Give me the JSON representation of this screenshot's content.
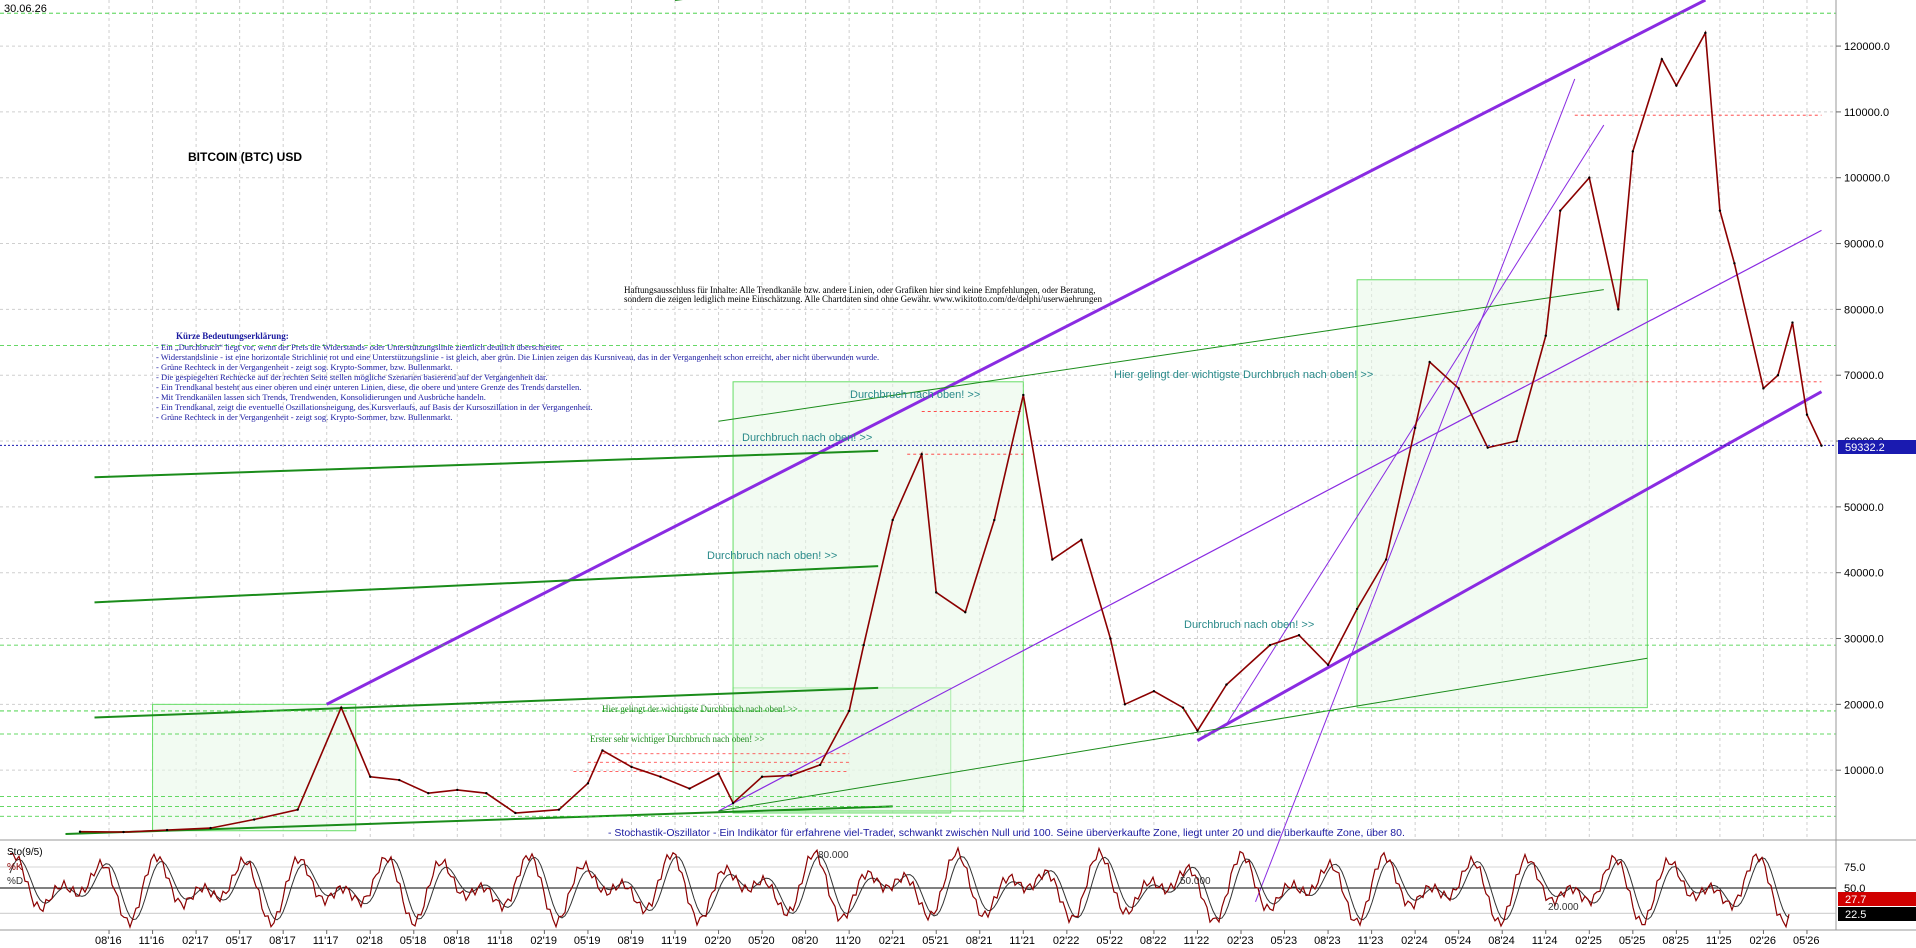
{
  "header": {
    "date": "30.06.26"
  },
  "chart_data": {
    "type": "line",
    "title": "BITCOIN (BTC) USD",
    "x_range": [
      "2016-06",
      "2026-07"
    ],
    "ylim": [
      0,
      127000
    ],
    "grid": true,
    "y_ticks": [
      10000,
      20000,
      30000,
      40000,
      50000,
      60000,
      70000,
      80000,
      90000,
      100000,
      110000,
      120000
    ],
    "y_tick_labels": [
      "10000.0",
      "20000.0",
      "30000.0",
      "40000.0",
      "50000.0",
      "60000.0",
      "70000.0",
      "80000.0",
      "90000.0",
      "100000.0",
      "110000.0",
      "120000.0"
    ],
    "x_tick_labels": [
      "08'16",
      "11'16",
      "02'17",
      "05'17",
      "08'17",
      "11'17",
      "02'18",
      "05'18",
      "08'18",
      "11'18",
      "02'19",
      "05'19",
      "08'19",
      "11'19",
      "02'20",
      "05'20",
      "08'20",
      "11'20",
      "02'21",
      "05'21",
      "08'21",
      "11'21",
      "02'22",
      "05'22",
      "08'22",
      "11'22",
      "02'23",
      "05'23",
      "08'23",
      "11'23",
      "02'24",
      "05'24",
      "08'24",
      "11'24",
      "02'25",
      "05'25",
      "08'25",
      "11'25",
      "02'26",
      "05'26"
    ],
    "last_price": "59332.2",
    "series": [
      {
        "name": "",
        "x": [
          "2016-06",
          "2016-09",
          "2016-12",
          "2017-03",
          "2017-06",
          "2017-09",
          "2017-12",
          "2018-02",
          "2018-04",
          "2018-06",
          "2018-08",
          "2018-10",
          "2018-12",
          "2019-03",
          "2019-05",
          "2019-06",
          "2019-08",
          "2019-10",
          "2019-12",
          "2020-02",
          "2020-03",
          "2020-05",
          "2020-07",
          "2020-09",
          "2020-11",
          "2020-12",
          "2021-02",
          "2021-04",
          "2021-05",
          "2021-07",
          "2021-09",
          "2021-11",
          "2022-01",
          "2022-03",
          "2022-05",
          "2022-06",
          "2022-08",
          "2022-10",
          "2022-11",
          "2023-01",
          "2023-04",
          "2023-06",
          "2023-08",
          "2023-10",
          "2023-12",
          "2024-02",
          "2024-03",
          "2024-05",
          "2024-07",
          "2024-09",
          "2024-11",
          "2024-12",
          "2025-02",
          "2025-04",
          "2025-05",
          "2025-07",
          "2025-08",
          "2025-10",
          "2025-11",
          "2025-12",
          "2026-02",
          "2026-03",
          "2026-04",
          "2026-05",
          "2026-06"
        ],
        "values": [
          650,
          600,
          900,
          1200,
          2500,
          4000,
          19500,
          9000,
          8500,
          6500,
          7000,
          6500,
          3500,
          4000,
          8000,
          13000,
          10500,
          9000,
          7200,
          9500,
          5000,
          9000,
          9200,
          10800,
          19000,
          29000,
          48000,
          58000,
          37000,
          34000,
          48000,
          67000,
          42000,
          45000,
          30000,
          20000,
          22000,
          19500,
          16000,
          23000,
          29000,
          30500,
          26000,
          34500,
          42000,
          62000,
          72000,
          68000,
          59000,
          60000,
          76000,
          95000,
          100000,
          80000,
          104000,
          118000,
          114000,
          122000,
          95000,
          87000,
          68000,
          70000,
          78000,
          64000,
          59300
        ]
      }
    ],
    "annotations": {
      "disclaimer_1": "Haftungsausschluss für Inhalte: Alle Trendkanäle bzw. andere Linien, oder Grafiken hier sind keine Empfehlungen, oder Beratung,",
      "disclaimer_2": "sondern die zeigen lediglich meine Einschätzung. Alle Chartdaten sind ohne Gewähr. www.wikitotto.com/de/delphi/userwaehrungen",
      "legend_title": "Kürze Bedeutungserklärung:",
      "legend_lines": [
        "- Ein „Durchbruch“ liegt vor, wenn der Preis die Widerstands- oder Unterstützungslinie ziemlich deutlich überschreitet.",
        "- Widerstandslinie - ist eine horizontale Strichlinie rot und eine Unterstützungslinie - ist gleich, aber grün. Die Linien zeigen das Kursniveau, das in der Vergangenheit schon erreicht, aber nicht überwunden wurde.",
        "- Grüne Rechteck in der Vergangenheit - zeigt sog. Krypto-Sommer, bzw. Bullenmarkt.",
        "- Die gespiegelten Rechtecke auf der rechten Seite stellen mögliche Szenarien basierend auf der Vergangenheit dar.",
        "- Ein Trendkanal besteht aus einer oberen und einer unteren Linien, diese, die obere und untere Grenze des Trends darstellen.",
        "- Mit Trendkanälen lassen sich Trends, Trendwenden, Konsolidierungen und Ausbrüche handeln.",
        "- Ein Trendkanal, zeigt die eventuelle Oszillationsneigung, des Kursverlaufs, auf Basis der Kursoszillation in der Vergangenheit.",
        "- Grüne Rechteck in der Vergangenheit - zeigt sog. Krypto-Sommer, bzw. Bullenmarkt."
      ],
      "breakout_label": "Durchbruch nach oben! >>",
      "main_breakout": "Hier gelingt der wichtigste Durchbruch nach oben! >>",
      "breakout_2020": "Hier gelingt der wichtigste Durchbruch nach oben! >>",
      "first_breakout": "Erster sehr wichtiger Durchbruch nach oben! >>",
      "stoch_note": "- Stochastik-Oszillator - Ein Indikator für erfahrene viel-Trader, schwankt zwischen Null und 100. Seine überverkaufte Zone, liegt unter 20 und die überkaufte Zone, über 80."
    }
  },
  "oscillator": {
    "label": "Sto(9/5)",
    "k_label": "%K",
    "d_label": "%D",
    "y_ticks": [
      "75.0",
      "50.0"
    ],
    "k_value": "27.7",
    "d_value": "22.5",
    "inline_labels": [
      "80.000",
      "50.000",
      "20.000"
    ],
    "ylim": [
      0,
      100
    ]
  },
  "colors": {
    "price": "#8b0000",
    "channel": "#8a2be2",
    "support": "#1a8c1a",
    "box": "#66dd66",
    "resistance": "#ff3333",
    "k": "#8b0000",
    "d": "#333333"
  }
}
